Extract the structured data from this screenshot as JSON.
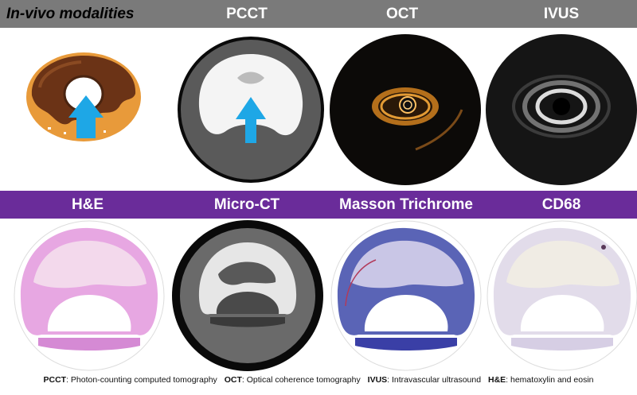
{
  "top_header": {
    "left_label": "In-vivo modalities",
    "labels": [
      "PCCT",
      "OCT",
      "IVUS"
    ]
  },
  "mid_header": {
    "labels": [
      "H&E",
      "Micro-CT",
      "Masson Trichrome",
      "CD68"
    ]
  },
  "footer": {
    "items": [
      {
        "abbr": "PCCT",
        "def": ": Photon-counting computed tomography"
      },
      {
        "abbr": "OCT",
        "def": ": Optical coherence tomography"
      },
      {
        "abbr": "IVUS",
        "def": ": Intravascular ultrasound"
      },
      {
        "abbr": "H&E",
        "def": ": hematoxylin and eosin"
      }
    ]
  },
  "colors": {
    "top_band": "#7a7a7a",
    "mid_band": "#6a2c9a",
    "arrow": "#1ea7e6"
  }
}
